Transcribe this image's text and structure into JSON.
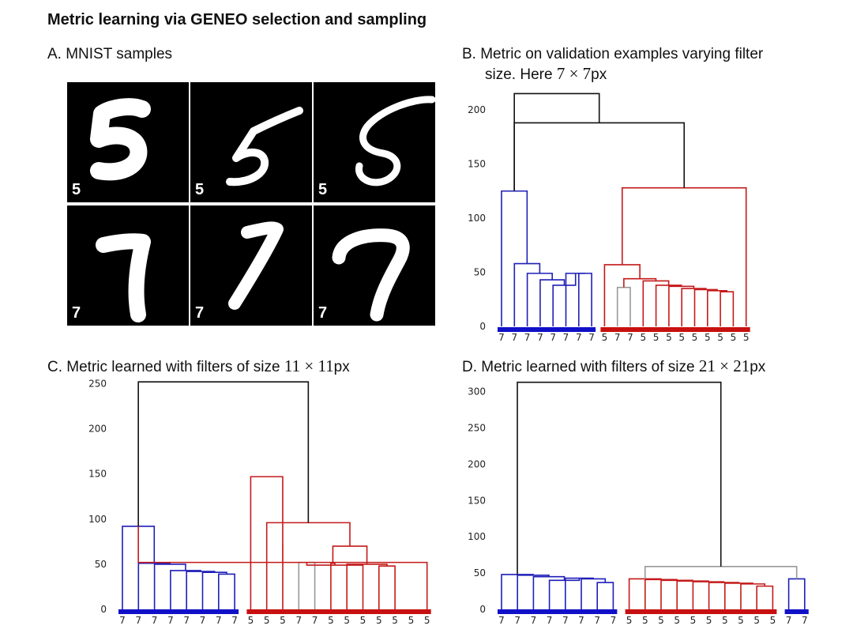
{
  "figure": {
    "title": "Metric learning via GENEO selection and sampling",
    "panel_a": {
      "title": "A. MNIST samples",
      "samples": [
        {
          "label": "5",
          "shape": "five-bold"
        },
        {
          "label": "5",
          "shape": "five-thin"
        },
        {
          "label": "5",
          "shape": "five-cursive"
        },
        {
          "label": "7",
          "shape": "seven-short"
        },
        {
          "label": "7",
          "shape": "seven-slant"
        },
        {
          "label": "7",
          "shape": "seven-hook"
        }
      ]
    },
    "panel_b": {
      "title_line1": "B. Metric on validation examples varying filter",
      "title_line2_prefix": "size. Here ",
      "title_math": "7 × 7",
      "title_suffix": "px"
    },
    "panel_c": {
      "title_prefix": "C. Metric learned with filters of size ",
      "title_math": "11 × 11",
      "title_suffix": "px"
    },
    "panel_d": {
      "title_prefix": "D. Metric learned with filters of size ",
      "title_math": "21 × 21",
      "title_suffix": "px"
    }
  },
  "colors": {
    "blue": "#1f1fb8",
    "red": "#c41a1a",
    "gray": "#999999",
    "black": "#111111",
    "blue_bar": "#1010c8",
    "red_bar": "#c81010"
  },
  "chart_data": [
    {
      "id": "B",
      "type": "dendrogram",
      "leaves": [
        "7",
        "7",
        "7",
        "7",
        "7",
        "7",
        "7",
        "7",
        "5",
        "7",
        "7",
        "5",
        "5",
        "5",
        "5",
        "5",
        "5",
        "5",
        "5",
        "5"
      ],
      "y_ticks": [
        0,
        50,
        100,
        150,
        200
      ],
      "ylim": [
        0,
        215
      ],
      "merges": [
        [
          6,
          7,
          49,
          "blue"
        ],
        [
          5,
          20,
          49,
          "blue"
        ],
        [
          4,
          21,
          38,
          "blue"
        ],
        [
          3,
          22,
          43,
          "blue"
        ],
        [
          2,
          23,
          49,
          "blue"
        ],
        [
          1,
          24,
          58,
          "blue"
        ],
        [
          0,
          25,
          125,
          "blue"
        ],
        [
          9,
          10,
          36,
          "gray"
        ],
        [
          17,
          18,
          32,
          "red"
        ],
        [
          16,
          28,
          33,
          "red"
        ],
        [
          15,
          29,
          34,
          "red"
        ],
        [
          14,
          30,
          35,
          "red"
        ],
        [
          13,
          31,
          37,
          "red"
        ],
        [
          12,
          32,
          38,
          "red"
        ],
        [
          11,
          33,
          42,
          "red"
        ],
        [
          27,
          34,
          44,
          "red"
        ],
        [
          8,
          35,
          57,
          "red"
        ],
        [
          36,
          19,
          128,
          "red"
        ],
        [
          37,
          26,
          188,
          "black"
        ],
        [
          38,
          26,
          215,
          "black"
        ]
      ],
      "leaf_bars": [
        {
          "from": 0,
          "to": 7,
          "color": "blue"
        },
        {
          "from": 8,
          "to": 19,
          "color": "red"
        }
      ]
    },
    {
      "id": "C",
      "type": "dendrogram",
      "leaves": [
        "7",
        "7",
        "7",
        "7",
        "7",
        "7",
        "7",
        "7",
        "5",
        "5",
        "5",
        "7",
        "7",
        "5",
        "5",
        "5",
        "5",
        "5",
        "5",
        "5"
      ],
      "y_ticks": [
        0,
        50,
        100,
        150,
        200,
        250
      ],
      "ylim": [
        0,
        252
      ],
      "merges": [
        [
          6,
          7,
          39,
          "blue"
        ],
        [
          5,
          20,
          41,
          "blue"
        ],
        [
          4,
          21,
          42,
          "blue"
        ],
        [
          3,
          22,
          43,
          "blue"
        ],
        [
          2,
          23,
          50,
          "blue"
        ],
        [
          1,
          24,
          51,
          "blue"
        ],
        [
          0,
          25,
          92,
          "blue"
        ],
        [
          11,
          12,
          52,
          "gray"
        ],
        [
          16,
          17,
          48,
          "red"
        ],
        [
          15,
          27,
          49,
          "red"
        ],
        [
          14,
          28,
          50,
          "red"
        ],
        [
          13,
          29,
          51,
          "red"
        ],
        [
          19,
          26,
          52,
          "red"
        ],
        [
          30,
          31,
          70,
          "red"
        ],
        [
          10,
          32,
          71,
          "red"
        ],
        [
          9,
          33,
          96,
          "red"
        ],
        [
          8,
          34,
          147,
          "red"
        ],
        [
          35,
          26,
          252,
          "black"
        ]
      ],
      "leaf_bars": [
        {
          "from": 0,
          "to": 7,
          "color": "blue"
        },
        {
          "from": 8,
          "to": 19,
          "color": "red"
        }
      ]
    },
    {
      "id": "D",
      "type": "dendrogram",
      "leaves": [
        "7",
        "7",
        "7",
        "7",
        "7",
        "7",
        "7",
        "7",
        "5",
        "5",
        "5",
        "5",
        "5",
        "5",
        "5",
        "5",
        "5",
        "5",
        "7",
        "7"
      ],
      "y_ticks": [
        0,
        50,
        100,
        150,
        200,
        250,
        300
      ],
      "ylim": [
        0,
        313
      ],
      "merges": [
        [
          6,
          7,
          37,
          "blue"
        ],
        [
          5,
          20,
          42,
          "blue"
        ],
        [
          4,
          21,
          43,
          "blue"
        ],
        [
          3,
          22,
          40,
          "blue"
        ],
        [
          2,
          23,
          45,
          "blue"
        ],
        [
          1,
          24,
          47,
          "blue"
        ],
        [
          0,
          25,
          48,
          "blue"
        ],
        [
          16,
          17,
          32,
          "red"
        ],
        [
          15,
          27,
          35,
          "red"
        ],
        [
          14,
          28,
          36,
          "red"
        ],
        [
          13,
          29,
          37,
          "red"
        ],
        [
          12,
          30,
          38,
          "red"
        ],
        [
          11,
          31,
          39,
          "red"
        ],
        [
          10,
          32,
          40,
          "red"
        ],
        [
          9,
          33,
          41,
          "red"
        ],
        [
          8,
          34,
          42,
          "red"
        ],
        [
          18,
          19,
          42,
          "blue"
        ],
        [
          35,
          36,
          59,
          "gray"
        ],
        [
          26,
          37,
          313,
          "black"
        ]
      ],
      "leaf_bars": [
        {
          "from": 0,
          "to": 7,
          "color": "blue"
        },
        {
          "from": 8,
          "to": 17,
          "color": "red"
        },
        {
          "from": 18,
          "to": 19,
          "color": "blue"
        }
      ]
    }
  ]
}
